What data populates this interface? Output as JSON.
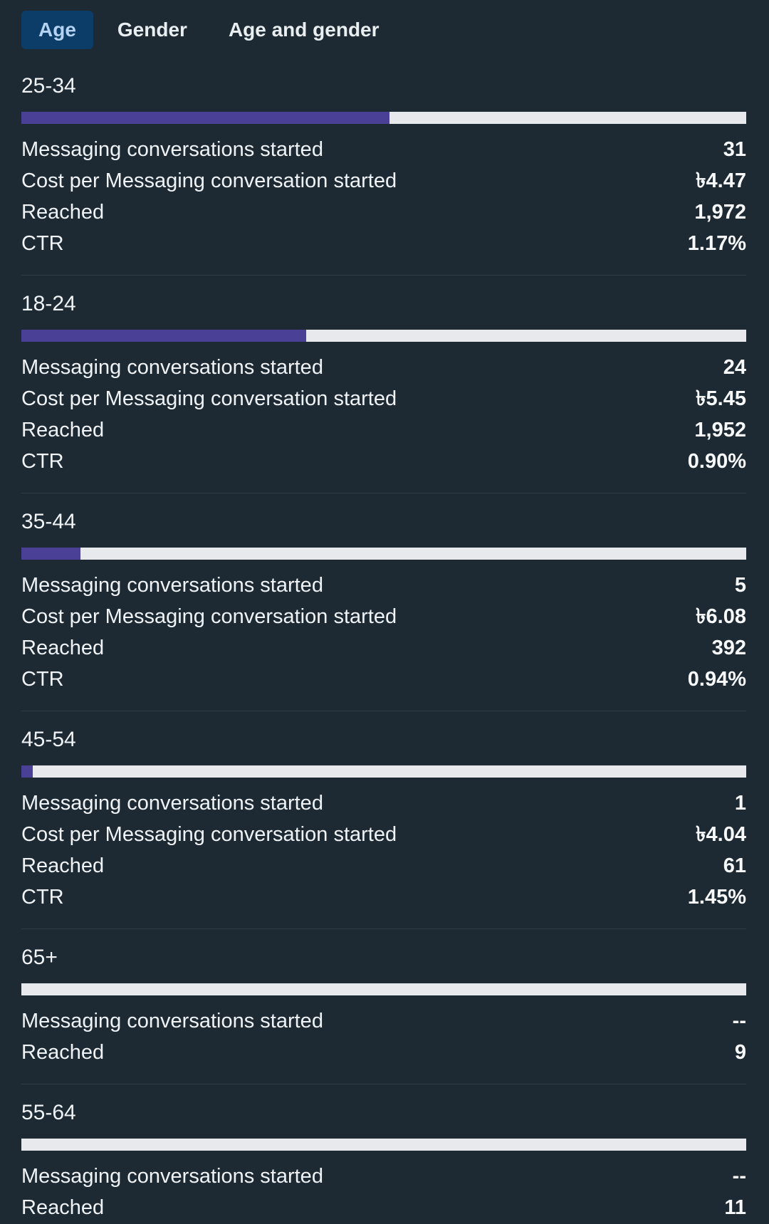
{
  "tabs": {
    "items": [
      {
        "id": "age",
        "label": "Age",
        "selected": true
      },
      {
        "id": "gender",
        "label": "Gender",
        "selected": false
      },
      {
        "id": "age-and-gender",
        "label": "Age and gender",
        "selected": false
      }
    ]
  },
  "sections": [
    {
      "age": "25-34",
      "bar_pct": 50.8,
      "rows": [
        {
          "label": "Messaging conversations started",
          "value": "31"
        },
        {
          "label": "Cost per Messaging conversation started",
          "value": "৳4.47"
        },
        {
          "label": "Reached",
          "value": "1,972"
        },
        {
          "label": "CTR",
          "value": "1.17%"
        }
      ]
    },
    {
      "age": "18-24",
      "bar_pct": 39.3,
      "rows": [
        {
          "label": "Messaging conversations started",
          "value": "24"
        },
        {
          "label": "Cost per Messaging conversation started",
          "value": "৳5.45"
        },
        {
          "label": "Reached",
          "value": "1,952"
        },
        {
          "label": "CTR",
          "value": "0.90%"
        }
      ]
    },
    {
      "age": "35-44",
      "bar_pct": 8.2,
      "rows": [
        {
          "label": "Messaging conversations started",
          "value": "5"
        },
        {
          "label": "Cost per Messaging conversation started",
          "value": "৳6.08"
        },
        {
          "label": "Reached",
          "value": "392"
        },
        {
          "label": "CTR",
          "value": "0.94%"
        }
      ]
    },
    {
      "age": "45-54",
      "bar_pct": 1.6,
      "rows": [
        {
          "label": "Messaging conversations started",
          "value": "1"
        },
        {
          "label": "Cost per Messaging conversation started",
          "value": "৳4.04"
        },
        {
          "label": "Reached",
          "value": "61"
        },
        {
          "label": "CTR",
          "value": "1.45%"
        }
      ]
    },
    {
      "age": "65+",
      "bar_pct": 0,
      "rows": [
        {
          "label": "Messaging conversations started",
          "value": "--"
        },
        {
          "label": "Reached",
          "value": "9"
        }
      ]
    },
    {
      "age": "55-64",
      "bar_pct": 0,
      "rows": [
        {
          "label": "Messaging conversations started",
          "value": "--"
        },
        {
          "label": "Reached",
          "value": "11"
        }
      ]
    }
  ],
  "colors": {
    "background": "#1d2a33",
    "divider": "#2d3c46",
    "bar_track": "#e7e9ed",
    "bar_fill": "#4a4197",
    "selected_tab_bg": "#0c3c68",
    "selected_tab_text": "#b4d2f1",
    "text": "#f0f3f5",
    "value_text": "#f7f9fa"
  }
}
